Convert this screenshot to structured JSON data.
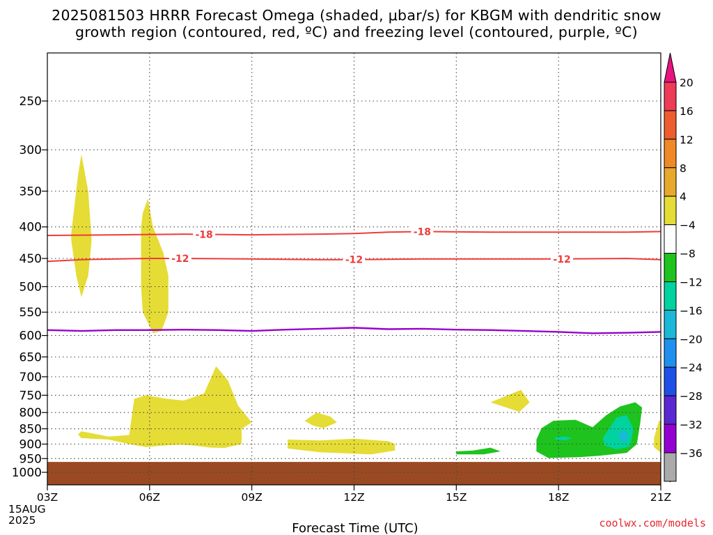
{
  "title_line1": "2025081503 HRRR Forecast Omega (shaded, μbar/s) for KBGM with dendritic snow",
  "title_line2": "growth region (contoured, red, ºC) and freezing level (contoured, purple, ºC)",
  "credit": "coolwx.com/models",
  "chart_data": {
    "type": "contour-cross-section",
    "xlabel": "Forecast Time (UTC)",
    "x_ticks": [
      "03Z",
      "06Z",
      "09Z",
      "12Z",
      "15Z",
      "18Z",
      "21Z"
    ],
    "x_hours": [
      3,
      6,
      9,
      12,
      15,
      18,
      21
    ],
    "x_start_label": [
      "15AUG",
      "2025"
    ],
    "y_ticks": [
      250,
      300,
      350,
      400,
      450,
      500,
      550,
      600,
      650,
      700,
      750,
      800,
      850,
      900,
      950,
      1000
    ],
    "y_range_hPa": [
      200,
      1025
    ],
    "grid": true,
    "dendritic_contours": [
      {
        "label": "-18",
        "color": "#ee3b3b",
        "points": [
          [
            3.0,
            413
          ],
          [
            5.0,
            412
          ],
          [
            7.0,
            411
          ],
          [
            9.0,
            412
          ],
          [
            11.0,
            411
          ],
          [
            12.0,
            410
          ],
          [
            13.0,
            408
          ],
          [
            14.0,
            407
          ],
          [
            16.0,
            408
          ],
          [
            18.0,
            408
          ],
          [
            20.0,
            408
          ],
          [
            21.0,
            407
          ]
        ],
        "label_at": [
          7.6,
          14.0
        ]
      },
      {
        "label": "-12",
        "color": "#ee3b3b",
        "points": [
          [
            3.0,
            455
          ],
          [
            4.0,
            452
          ],
          [
            5.0,
            451
          ],
          [
            6.0,
            450
          ],
          [
            7.0,
            450
          ],
          [
            9.0,
            451
          ],
          [
            11.0,
            452
          ],
          [
            12.0,
            452
          ],
          [
            14.0,
            451
          ],
          [
            16.0,
            451
          ],
          [
            18.0,
            451
          ],
          [
            20.0,
            450
          ],
          [
            21.0,
            452
          ]
        ],
        "label_at": [
          6.9,
          12.0,
          18.1
        ]
      }
    ],
    "freezing_level": {
      "label": "0",
      "color": "#9900cc",
      "points": [
        [
          3.0,
          588
        ],
        [
          4.0,
          590
        ],
        [
          5.0,
          588
        ],
        [
          6.0,
          588
        ],
        [
          7.0,
          587
        ],
        [
          8.0,
          588
        ],
        [
          9.0,
          590
        ],
        [
          10.0,
          587
        ],
        [
          11.0,
          585
        ],
        [
          12.0,
          583
        ],
        [
          13.0,
          586
        ],
        [
          14.0,
          585
        ],
        [
          15.0,
          587
        ],
        [
          16.0,
          588
        ],
        [
          17.0,
          590
        ],
        [
          18.0,
          592
        ],
        [
          19.0,
          595
        ],
        [
          20.0,
          594
        ],
        [
          21.0,
          592
        ]
      ]
    },
    "omega_regions": [
      {
        "level": "4 to 8",
        "color": "#e5dc36",
        "points": [
          [
            3.7,
            410
          ],
          [
            3.9,
            330
          ],
          [
            4.0,
            305
          ],
          [
            4.2,
            350
          ],
          [
            4.3,
            420
          ],
          [
            4.2,
            480
          ],
          [
            4.0,
            520
          ],
          [
            3.85,
            480
          ],
          [
            3.7,
            420
          ]
        ]
      },
      {
        "level": "4 to 8",
        "color": "#e5dc36",
        "points": [
          [
            5.75,
            400
          ],
          [
            5.8,
            380
          ],
          [
            5.95,
            360
          ],
          [
            6.1,
            400
          ],
          [
            6.4,
            440
          ],
          [
            6.55,
            480
          ],
          [
            6.55,
            550
          ],
          [
            6.35,
            590
          ],
          [
            6.1,
            595
          ],
          [
            5.8,
            550
          ],
          [
            5.75,
            500
          ]
        ]
      },
      {
        "level": "4 to 8",
        "color": "#e5dc36",
        "points": [
          [
            3.9,
            868
          ],
          [
            4.0,
            858
          ],
          [
            4.8,
            875
          ],
          [
            5.4,
            870
          ],
          [
            5.55,
            760
          ],
          [
            5.9,
            750
          ],
          [
            6.5,
            760
          ],
          [
            7.0,
            765
          ],
          [
            7.6,
            745
          ],
          [
            7.95,
            673
          ],
          [
            8.3,
            710
          ],
          [
            8.6,
            780
          ],
          [
            9.0,
            830
          ],
          [
            8.7,
            850
          ],
          [
            8.7,
            900
          ],
          [
            8.2,
            913
          ],
          [
            7.8,
            912
          ],
          [
            7.3,
            905
          ],
          [
            6.9,
            902
          ],
          [
            6.4,
            905
          ],
          [
            5.9,
            910
          ],
          [
            5.4,
            900
          ],
          [
            4.8,
            885
          ],
          [
            4.0,
            880
          ]
        ]
      },
      {
        "level": "4 to 8",
        "color": "#e5dc36",
        "points": [
          [
            10.55,
            825
          ],
          [
            10.9,
            800
          ],
          [
            11.3,
            812
          ],
          [
            11.5,
            830
          ],
          [
            11.1,
            848
          ],
          [
            10.8,
            840
          ]
        ]
      },
      {
        "level": "4 to 8",
        "color": "#e5dc36",
        "points": [
          [
            10.05,
            885
          ],
          [
            11.0,
            888
          ],
          [
            12.0,
            882
          ],
          [
            13.0,
            890
          ],
          [
            13.2,
            900
          ],
          [
            13.2,
            922
          ],
          [
            12.5,
            935
          ],
          [
            11.0,
            928
          ],
          [
            10.05,
            915
          ]
        ]
      },
      {
        "level": "4 to 8",
        "color": "#e5dc36",
        "points": [
          [
            16.0,
            770
          ],
          [
            16.9,
            735
          ],
          [
            17.15,
            770
          ],
          [
            16.85,
            798
          ]
        ]
      },
      {
        "level": "4 to 8",
        "color": "#e5dc36",
        "points": [
          [
            20.8,
            880
          ],
          [
            20.95,
            825
          ],
          [
            21.0,
            825
          ],
          [
            21.0,
            930
          ],
          [
            20.8,
            910
          ]
        ]
      },
      {
        "level": "-8 to -4",
        "color": "#1ec31e",
        "points": [
          [
            15.0,
            925
          ],
          [
            15.5,
            922
          ],
          [
            16.0,
            912
          ],
          [
            16.3,
            925
          ],
          [
            15.8,
            935
          ],
          [
            15.0,
            935
          ]
        ]
      },
      {
        "level": "-8 to -4",
        "color": "#1ec31e",
        "points": [
          [
            17.35,
            885
          ],
          [
            17.5,
            848
          ],
          [
            17.85,
            825
          ],
          [
            18.5,
            822
          ],
          [
            19.0,
            845
          ],
          [
            19.4,
            808
          ],
          [
            19.8,
            782
          ],
          [
            20.25,
            770
          ],
          [
            20.45,
            785
          ],
          [
            20.4,
            830
          ],
          [
            20.3,
            900
          ],
          [
            20.0,
            930
          ],
          [
            19.2,
            940
          ],
          [
            18.6,
            945
          ],
          [
            17.7,
            948
          ],
          [
            17.35,
            925
          ]
        ]
      },
      {
        "level": "-12 to -8",
        "color": "#00d2a0",
        "points": [
          [
            17.9,
            878
          ],
          [
            18.2,
            875
          ],
          [
            18.4,
            880
          ],
          [
            18.2,
            888
          ],
          [
            17.9,
            885
          ]
        ]
      },
      {
        "level": "-12 to -8",
        "color": "#00d2a0",
        "points": [
          [
            19.3,
            880
          ],
          [
            19.7,
            815
          ],
          [
            20.0,
            808
          ],
          [
            20.2,
            850
          ],
          [
            20.1,
            908
          ],
          [
            19.7,
            918
          ],
          [
            19.35,
            905
          ]
        ]
      },
      {
        "level": "-16 to -12",
        "color": "#1cb8d8",
        "points": [
          [
            19.75,
            870
          ],
          [
            19.9,
            855
          ],
          [
            20.05,
            870
          ],
          [
            19.95,
            895
          ],
          [
            19.8,
            885
          ]
        ]
      }
    ],
    "ground": {
      "color": "#9a4a22",
      "top_hPa": 962
    },
    "colorbar": {
      "ticks": [
        20,
        16,
        12,
        8,
        4,
        -4,
        -8,
        -12,
        -16,
        -20,
        -24,
        -28,
        -32,
        -36
      ],
      "colors": [
        "#ee3b56",
        "#ee5d2e",
        "#f08828",
        "#e8a82e",
        "#e5dc36",
        "#ffffff",
        "#1ec31e",
        "#00d2a0",
        "#1cb8d8",
        "#1e90f0",
        "#1e50e8",
        "#5a28d2",
        "#9400d3",
        "#aaaaaa"
      ],
      "top_cap": "#e8137e",
      "bottom_cap": "#000000"
    }
  }
}
